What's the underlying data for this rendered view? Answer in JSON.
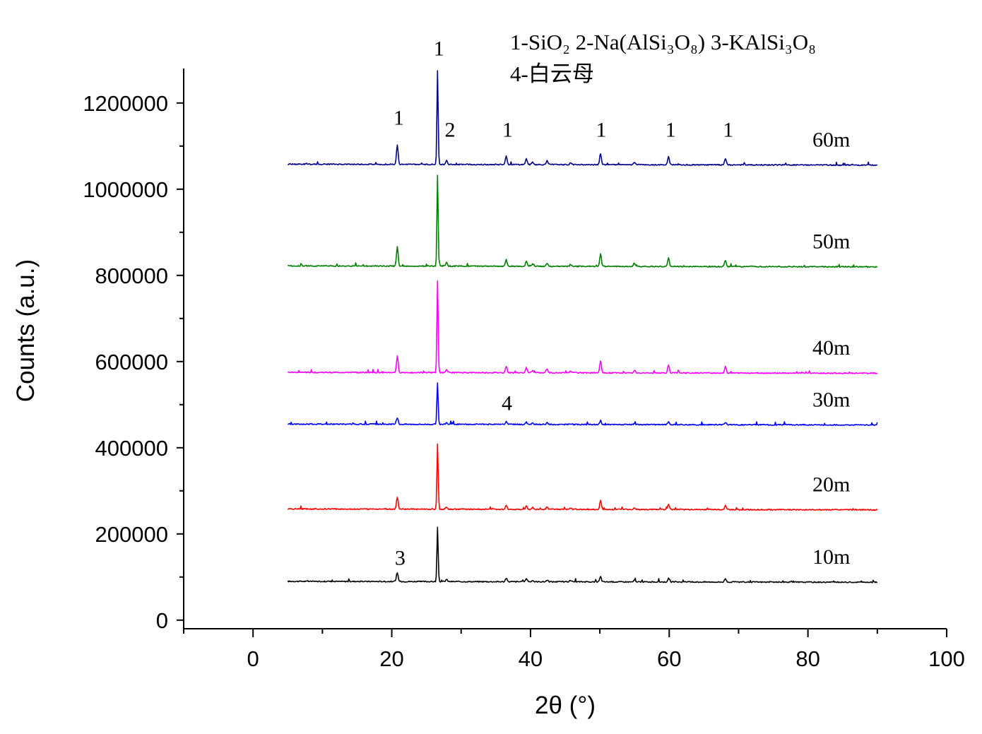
{
  "chart_data": {
    "type": "line",
    "xlabel": "2θ (°)",
    "ylabel": "Counts (a.u.)",
    "xlim": [
      -10,
      100
    ],
    "ylim": [
      -20000,
      1280000
    ],
    "xticks": [
      "0",
      "20",
      "40",
      "60",
      "80",
      "100"
    ],
    "xtick_values": [
      0,
      20,
      40,
      60,
      80,
      100
    ],
    "yticks": [
      "0",
      "200000",
      "400000",
      "600000",
      "800000",
      "1000000",
      "1200000"
    ],
    "ytick_values": [
      0,
      200000,
      400000,
      600000,
      800000,
      1000000,
      1200000
    ],
    "grid": false,
    "legend_lines": [
      "1-SiO₂ 2-Na(AlSi₃O₈) 3-KAlSi₃O₈",
      "4-白云母"
    ],
    "peak_positions": [
      20.8,
      26.6,
      27.9,
      36.5,
      39.4,
      40.3,
      42.4,
      45.8,
      50.1,
      55.0,
      59.9,
      68.1
    ],
    "series": [
      {
        "name": "10m",
        "color": "#000000",
        "baseline": 90000,
        "peak_heights": [
          20000,
          125000,
          5000,
          8000,
          7000,
          3000,
          4000,
          3000,
          12000,
          4000,
          8000,
          8000
        ]
      },
      {
        "name": "20m",
        "color": "#ff0000",
        "baseline": 258000,
        "peak_heights": [
          28000,
          152000,
          5000,
          10000,
          8000,
          4000,
          5000,
          3000,
          20000,
          4000,
          12000,
          10000
        ]
      },
      {
        "name": "30m",
        "color": "#0000ff",
        "baseline": 455000,
        "peak_heights": [
          15000,
          97000,
          4000,
          6000,
          5000,
          3000,
          4000,
          2000,
          9000,
          3000,
          6000,
          6000
        ]
      },
      {
        "name": "40m",
        "color": "#ff00ff",
        "baseline": 575000,
        "peak_heights": [
          38000,
          212000,
          8000,
          15000,
          12000,
          5000,
          8000,
          4000,
          28000,
          6000,
          18000,
          15000
        ]
      },
      {
        "name": "50m",
        "color": "#008000",
        "baseline": 822000,
        "peak_heights": [
          45000,
          210000,
          8000,
          15000,
          12000,
          5000,
          8000,
          4000,
          30000,
          6000,
          20000,
          15000
        ]
      },
      {
        "name": "60m",
        "color": "#00008b",
        "baseline": 1058000,
        "peak_heights": [
          45000,
          217000,
          10000,
          20000,
          14000,
          6000,
          10000,
          5000,
          25000,
          6000,
          20000,
          15000
        ]
      }
    ],
    "x_start": 5,
    "x_end": 90,
    "annotations": [
      {
        "text": "1",
        "x": 21.0,
        "y": 1150000
      },
      {
        "text": "1",
        "x": 26.8,
        "y": 1310000
      },
      {
        "text": "2",
        "x": 28.4,
        "y": 1122000
      },
      {
        "text": "1",
        "x": 36.7,
        "y": 1122000
      },
      {
        "text": "1",
        "x": 50.2,
        "y": 1122000
      },
      {
        "text": "1",
        "x": 60.2,
        "y": 1122000
      },
      {
        "text": "1",
        "x": 68.5,
        "y": 1122000
      },
      {
        "text": "4",
        "x": 36.6,
        "y": 487000
      },
      {
        "text": "3",
        "x": 21.2,
        "y": 128000
      }
    ]
  }
}
